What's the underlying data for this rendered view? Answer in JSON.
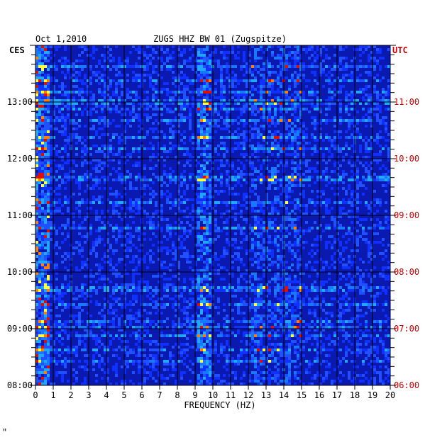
{
  "chart_data": {
    "type": "heatmap",
    "title_left": "Oct 1,2010",
    "title_center": "ZUGS HHZ BW 01 (Zugspitze)",
    "left_tz": "CES",
    "right_tz": "UTC",
    "xlabel": "FREQUENCY (HZ)",
    "xlim": [
      0,
      20
    ],
    "x_ticks": [
      "0",
      "1",
      "2",
      "3",
      "4",
      "5",
      "6",
      "7",
      "8",
      "9",
      "10",
      "11",
      "12",
      "13",
      "14",
      "15",
      "16",
      "17",
      "18",
      "19",
      "20"
    ],
    "left_time_ticks": [
      "13:00",
      "12:00",
      "11:00",
      "10:00",
      "09:00",
      "08:00"
    ],
    "right_time_ticks": [
      "11:00",
      "10:00",
      "09:00",
      "08:00",
      "07:00",
      "06:00"
    ],
    "time_range_local": [
      "08:00",
      "14:00"
    ],
    "colors": {
      "background": "#0a1ab0",
      "grid": "#000000",
      "utc_text": "#cc0000",
      "hot": "#ffff40",
      "warm": "#40ffff"
    }
  },
  "footer_mark": "\""
}
